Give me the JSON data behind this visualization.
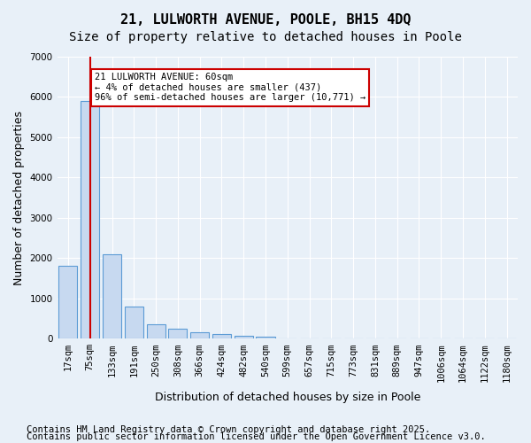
{
  "title_line1": "21, LULWORTH AVENUE, POOLE, BH15 4DQ",
  "title_line2": "Size of property relative to detached houses in Poole",
  "xlabel": "Distribution of detached houses by size in Poole",
  "ylabel": "Number of detached properties",
  "categories": [
    "17sqm",
    "75sqm",
    "133sqm",
    "191sqm",
    "250sqm",
    "308sqm",
    "366sqm",
    "424sqm",
    "482sqm",
    "540sqm",
    "599sqm",
    "657sqm",
    "715sqm",
    "773sqm",
    "831sqm",
    "889sqm",
    "947sqm",
    "1006sqm",
    "1064sqm",
    "1122sqm",
    "1180sqm"
  ],
  "values": [
    1800,
    5900,
    2100,
    800,
    350,
    240,
    150,
    120,
    80,
    50,
    0,
    0,
    0,
    0,
    0,
    0,
    0,
    0,
    0,
    0,
    0
  ],
  "bar_color": "#c7d9f0",
  "bar_edge_color": "#5b9bd5",
  "highlight_index": 1,
  "annotation_text": "21 LULWORTH AVENUE: 60sqm\n← 4% of detached houses are smaller (437)\n96% of semi-detached houses are larger (10,771) →",
  "annotation_box_color": "#ffffff",
  "annotation_box_edge_color": "#cc0000",
  "ylim": [
    0,
    7000
  ],
  "yticks": [
    0,
    1000,
    2000,
    3000,
    4000,
    5000,
    6000,
    7000
  ],
  "background_color": "#e8f0f8",
  "plot_background": "#e8f0f8",
  "grid_color": "#ffffff",
  "footer_line1": "Contains HM Land Registry data © Crown copyright and database right 2025.",
  "footer_line2": "Contains public sector information licensed under the Open Government Licence v3.0.",
  "title_fontsize": 11,
  "subtitle_fontsize": 10,
  "tick_fontsize": 7.5,
  "ylabel_fontsize": 9,
  "xlabel_fontsize": 9,
  "footer_fontsize": 7.5
}
